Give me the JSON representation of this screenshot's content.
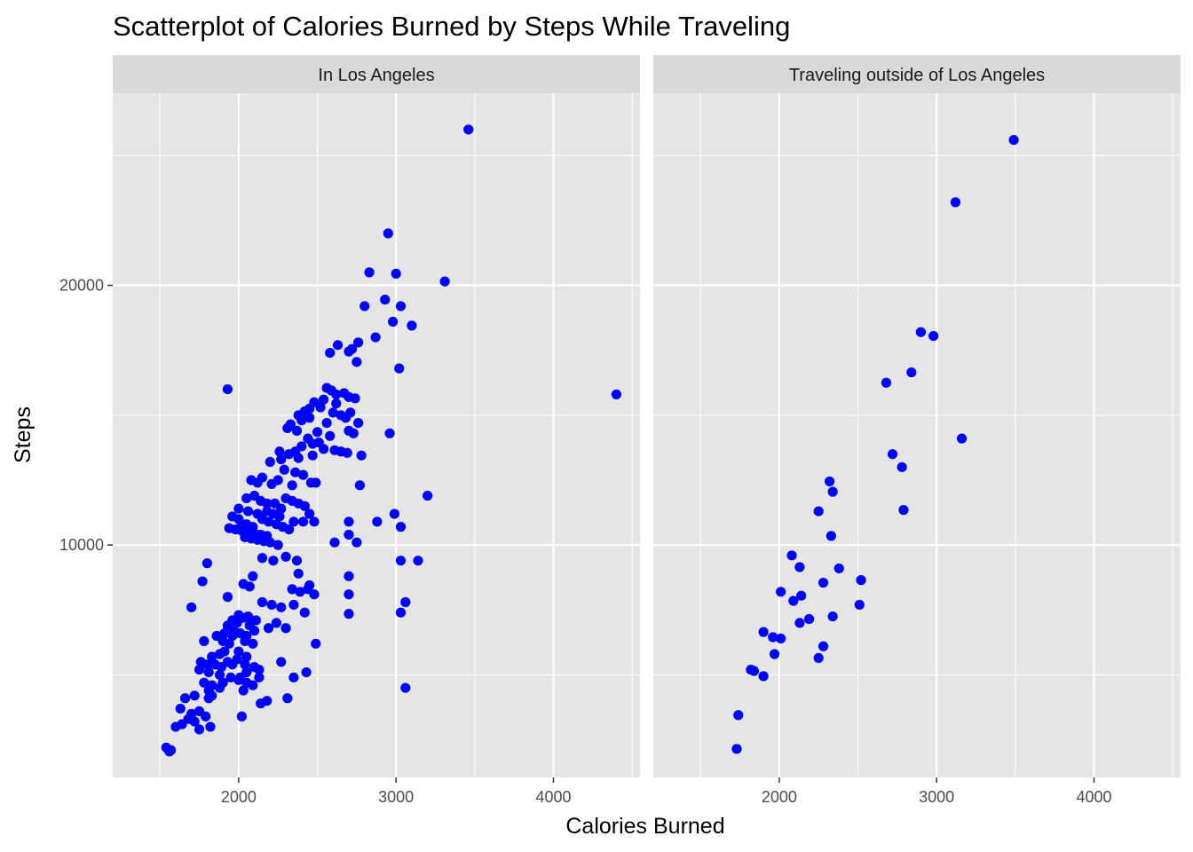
{
  "chart_data": {
    "type": "scatter",
    "title": "Scatterplot of Calories Burned by Steps While Traveling",
    "xlabel": "Calories Burned",
    "ylabel": "Steps",
    "xlim": [
      1200,
      4550
    ],
    "ylim": [
      1050,
      27400
    ],
    "x_ticks": [
      2000,
      3000,
      4000
    ],
    "x_tick_labels": [
      "2000",
      "3000",
      "4000"
    ],
    "y_ticks": [
      10000,
      20000
    ],
    "y_tick_labels": [
      "10000",
      "20000"
    ],
    "grid": true,
    "point_color": "#0000ff",
    "panel_background": "#e5e5e5",
    "strip_background": "#d9d9d9",
    "gridline_color": "#ffffff",
    "panels": [
      {
        "label": "In Los Angeles",
        "points": [
          [
            3460,
            26000
          ],
          [
            2950,
            22000
          ],
          [
            2830,
            20500
          ],
          [
            3000,
            20450
          ],
          [
            3310,
            20150
          ],
          [
            2930,
            19450
          ],
          [
            3030,
            19200
          ],
          [
            2800,
            19200
          ],
          [
            2980,
            18600
          ],
          [
            3100,
            18450
          ],
          [
            2870,
            18000
          ],
          [
            2760,
            17800
          ],
          [
            2630,
            17700
          ],
          [
            2720,
            17550
          ],
          [
            2700,
            17450
          ],
          [
            2580,
            17400
          ],
          [
            2750,
            17050
          ],
          [
            3020,
            16800
          ],
          [
            1930,
            16000
          ],
          [
            2560,
            16050
          ],
          [
            2590,
            15950
          ],
          [
            2620,
            15800
          ],
          [
            2670,
            15850
          ],
          [
            2700,
            15700
          ],
          [
            2740,
            15650
          ],
          [
            2540,
            15600
          ],
          [
            2480,
            15500
          ],
          [
            2620,
            15450
          ],
          [
            2450,
            15250
          ],
          [
            2520,
            15300
          ],
          [
            2600,
            15100
          ],
          [
            2650,
            15000
          ],
          [
            2710,
            15100
          ],
          [
            4400,
            15800
          ],
          [
            2420,
            15150
          ],
          [
            2380,
            15000
          ],
          [
            2330,
            14650
          ],
          [
            2400,
            14800
          ],
          [
            2450,
            14900
          ],
          [
            2560,
            14700
          ],
          [
            2680,
            14900
          ],
          [
            2760,
            14700
          ],
          [
            2310,
            14500
          ],
          [
            2370,
            14400
          ],
          [
            2500,
            14350
          ],
          [
            2580,
            14200
          ],
          [
            2700,
            14400
          ],
          [
            2730,
            14300
          ],
          [
            2960,
            14300
          ],
          [
            2440,
            14100
          ],
          [
            2470,
            13900
          ],
          [
            2400,
            13800
          ],
          [
            2360,
            13600
          ],
          [
            2510,
            13950
          ],
          [
            2540,
            13700
          ],
          [
            2610,
            13650
          ],
          [
            2650,
            13600
          ],
          [
            2690,
            13550
          ],
          [
            2780,
            13450
          ],
          [
            2260,
            13600
          ],
          [
            2320,
            13500
          ],
          [
            2200,
            13200
          ],
          [
            2270,
            13300
          ],
          [
            2380,
            13350
          ],
          [
            2470,
            13450
          ],
          [
            2290,
            12900
          ],
          [
            2360,
            12800
          ],
          [
            2410,
            12700
          ],
          [
            2150,
            12600
          ],
          [
            2080,
            12500
          ],
          [
            2120,
            12400
          ],
          [
            2210,
            12350
          ],
          [
            2250,
            12500
          ],
          [
            2340,
            12300
          ],
          [
            2460,
            12400
          ],
          [
            2490,
            12400
          ],
          [
            2770,
            12300
          ],
          [
            2990,
            11200
          ],
          [
            3200,
            11900
          ],
          [
            2000,
            11400
          ],
          [
            2050,
            11800
          ],
          [
            2100,
            11900
          ],
          [
            2140,
            11700
          ],
          [
            2180,
            11600
          ],
          [
            2230,
            11600
          ],
          [
            2270,
            11400
          ],
          [
            2300,
            11800
          ],
          [
            2340,
            11700
          ],
          [
            2380,
            11600
          ],
          [
            2420,
            11500
          ],
          [
            2450,
            11200
          ],
          [
            2120,
            11200
          ],
          [
            2180,
            11300
          ],
          [
            2220,
            11200
          ],
          [
            2260,
            11100
          ],
          [
            2150,
            11000
          ],
          [
            2190,
            10900
          ],
          [
            2240,
            10800
          ],
          [
            2280,
            10700
          ],
          [
            2320,
            10600
          ],
          [
            2350,
            10900
          ],
          [
            2410,
            10900
          ],
          [
            2480,
            10900
          ],
          [
            2700,
            10900
          ],
          [
            2880,
            10900
          ],
          [
            3030,
            10700
          ],
          [
            1960,
            11100
          ],
          [
            2000,
            11000
          ],
          [
            2050,
            10800
          ],
          [
            2090,
            10700
          ],
          [
            1940,
            10650
          ],
          [
            1980,
            10600
          ],
          [
            2020,
            10550
          ],
          [
            2060,
            10500
          ],
          [
            2100,
            10450
          ],
          [
            2140,
            10400
          ],
          [
            2180,
            10350
          ],
          [
            2040,
            10300
          ],
          [
            2080,
            10250
          ],
          [
            2120,
            10200
          ],
          [
            2160,
            10150
          ],
          [
            2200,
            10100
          ],
          [
            2250,
            10000
          ],
          [
            2610,
            10100
          ],
          [
            2750,
            10100
          ],
          [
            2700,
            10400
          ],
          [
            2020,
            10800
          ],
          [
            2060,
            11300
          ],
          [
            2300,
            9550
          ],
          [
            2370,
            9400
          ],
          [
            2150,
            9500
          ],
          [
            2220,
            9400
          ],
          [
            3030,
            9400
          ],
          [
            3140,
            9400
          ],
          [
            1800,
            9300
          ],
          [
            2380,
            8900
          ],
          [
            2090,
            8800
          ],
          [
            1770,
            8600
          ],
          [
            2030,
            8500
          ],
          [
            2070,
            8400
          ],
          [
            2450,
            8450
          ],
          [
            2700,
            8800
          ],
          [
            2440,
            8300
          ],
          [
            2340,
            8300
          ],
          [
            2390,
            8200
          ],
          [
            2700,
            8100
          ],
          [
            2480,
            8100
          ],
          [
            1930,
            8000
          ],
          [
            2150,
            7800
          ],
          [
            2210,
            7700
          ],
          [
            2270,
            7600
          ],
          [
            2350,
            7700
          ],
          [
            2420,
            7400
          ],
          [
            2700,
            7350
          ],
          [
            3060,
            7800
          ],
          [
            3030,
            7400
          ],
          [
            1700,
            7600
          ],
          [
            2000,
            7300
          ],
          [
            2030,
            7200
          ],
          [
            2060,
            7250
          ],
          [
            2110,
            7100
          ],
          [
            1960,
            7100
          ],
          [
            1990,
            7000
          ],
          [
            2240,
            7000
          ],
          [
            2190,
            6800
          ],
          [
            2300,
            6800
          ],
          [
            1930,
            6900
          ],
          [
            1970,
            6700
          ],
          [
            2010,
            6600
          ],
          [
            2070,
            6900
          ],
          [
            2100,
            6700
          ],
          [
            1860,
            6500
          ],
          [
            1910,
            6600
          ],
          [
            1960,
            6500
          ],
          [
            2050,
            6500
          ],
          [
            1900,
            6300
          ],
          [
            1940,
            6200
          ],
          [
            2040,
            6300
          ],
          [
            2090,
            6200
          ],
          [
            1780,
            6300
          ],
          [
            2490,
            6200
          ],
          [
            1830,
            5700
          ],
          [
            1880,
            5800
          ],
          [
            1910,
            5900
          ],
          [
            2000,
            5900
          ],
          [
            2050,
            5700
          ],
          [
            1760,
            5500
          ],
          [
            1800,
            5400
          ],
          [
            1850,
            5400
          ],
          [
            1890,
            5300
          ],
          [
            1930,
            5500
          ],
          [
            1960,
            5400
          ],
          [
            1990,
            5600
          ],
          [
            2040,
            5400
          ],
          [
            2100,
            5300
          ],
          [
            2270,
            5500
          ],
          [
            1750,
            5200
          ],
          [
            1810,
            5100
          ],
          [
            1880,
            5000
          ],
          [
            1950,
            4900
          ],
          [
            2010,
            4900
          ],
          [
            2050,
            5100
          ],
          [
            2130,
            5200
          ],
          [
            2130,
            4900
          ],
          [
            2350,
            4900
          ],
          [
            2430,
            5100
          ],
          [
            1780,
            4700
          ],
          [
            1830,
            4600
          ],
          [
            1900,
            4700
          ],
          [
            2000,
            4800
          ],
          [
            2050,
            4700
          ],
          [
            2090,
            4600
          ],
          [
            1810,
            4400
          ],
          [
            1880,
            4500
          ],
          [
            2030,
            4400
          ],
          [
            3060,
            4500
          ],
          [
            1660,
            4100
          ],
          [
            1720,
            4200
          ],
          [
            1810,
            4100
          ],
          [
            1830,
            4200
          ],
          [
            2140,
            3900
          ],
          [
            2180,
            4000
          ],
          [
            2310,
            4100
          ],
          [
            1630,
            3700
          ],
          [
            1700,
            3500
          ],
          [
            1750,
            3600
          ],
          [
            1790,
            3400
          ],
          [
            1720,
            3200
          ],
          [
            1680,
            3300
          ],
          [
            1600,
            3000
          ],
          [
            1640,
            3100
          ],
          [
            1750,
            2900
          ],
          [
            1820,
            3000
          ],
          [
            2020,
            3400
          ],
          [
            1540,
            2200
          ],
          [
            1560,
            2050
          ],
          [
            1570,
            2100
          ]
        ]
      },
      {
        "label": "Traveling outside of Los Angeles",
        "points": [
          [
            3490,
            25600
          ],
          [
            3120,
            23200
          ],
          [
            2900,
            18200
          ],
          [
            2980,
            18050
          ],
          [
            2840,
            16650
          ],
          [
            2680,
            16250
          ],
          [
            3160,
            14100
          ],
          [
            2720,
            13500
          ],
          [
            2780,
            13000
          ],
          [
            2320,
            12450
          ],
          [
            2340,
            12050
          ],
          [
            2250,
            11300
          ],
          [
            2790,
            11350
          ],
          [
            2330,
            10350
          ],
          [
            2080,
            9600
          ],
          [
            2130,
            9150
          ],
          [
            2380,
            9100
          ],
          [
            2280,
            8550
          ],
          [
            2520,
            8650
          ],
          [
            2010,
            8200
          ],
          [
            2140,
            8050
          ],
          [
            2090,
            7850
          ],
          [
            2510,
            7700
          ],
          [
            2340,
            7250
          ],
          [
            2190,
            7150
          ],
          [
            2130,
            7000
          ],
          [
            1900,
            6650
          ],
          [
            1960,
            6450
          ],
          [
            2010,
            6400
          ],
          [
            2280,
            6100
          ],
          [
            1970,
            5800
          ],
          [
            2250,
            5650
          ],
          [
            1820,
            5200
          ],
          [
            1840,
            5150
          ],
          [
            1900,
            4950
          ],
          [
            1740,
            3450
          ],
          [
            1730,
            2150
          ]
        ]
      }
    ]
  }
}
